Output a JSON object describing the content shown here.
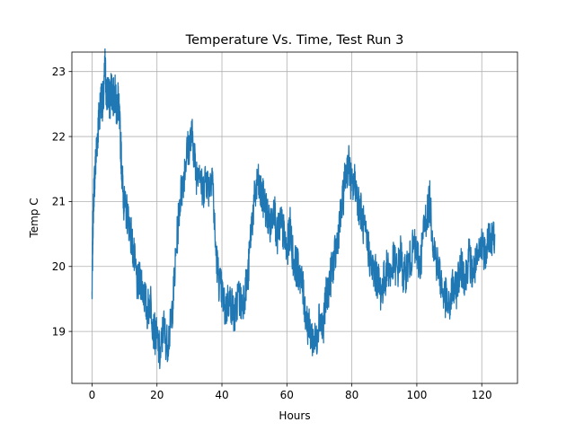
{
  "chart_data": {
    "type": "line",
    "title": "Temperature Vs. Time, Test Run 3",
    "xlabel": "Hours",
    "ylabel": "Temp C",
    "xlim": [
      -6.2,
      131
    ],
    "ylim": [
      18.2,
      23.3
    ],
    "xticks": [
      0,
      20,
      40,
      60,
      80,
      100,
      120
    ],
    "yticks": [
      19,
      20,
      21,
      22,
      23
    ],
    "grid": true,
    "series_color": "#1f77b4",
    "series": [
      {
        "x": [
          0.0,
          0.3,
          0.6,
          1.0,
          1.5,
          2.0,
          2.5,
          3.0,
          3.5,
          4.0,
          4.5,
          5.0,
          5.5,
          6.0,
          6.5,
          7.0,
          7.5,
          8.0,
          8.5,
          9.0,
          9.5,
          10.0,
          11.0,
          12.0,
          13.0,
          14.0,
          15.0,
          16.0,
          17.0,
          18.0,
          19.0,
          20.0,
          21.0,
          22.0,
          23.0,
          24.0,
          25.0,
          26.0,
          27.0,
          28.0,
          29.0,
          30.0,
          31.0,
          32.0,
          33.0,
          34.0,
          35.0,
          36.0,
          37.0,
          38.0,
          39.0,
          40.0,
          41.0,
          42.0,
          43.0,
          44.0,
          45.0,
          46.0,
          47.0,
          48.0,
          49.0,
          50.0,
          51.0,
          52.0,
          53.0,
          54.0,
          55.0,
          56.0,
          57.0,
          58.0,
          59.0,
          60.0,
          61.0,
          62.0,
          63.0,
          64.0,
          65.0,
          66.0,
          67.0,
          68.0,
          69.0,
          70.0,
          71.0,
          72.0,
          73.0,
          74.0,
          75.0,
          76.0,
          77.0,
          78.0,
          79.0,
          80.0,
          81.0,
          82.0,
          83.0,
          84.0,
          85.0,
          86.0,
          87.0,
          88.0,
          89.0,
          90.0,
          91.0,
          92.0,
          93.0,
          94.0,
          95.0,
          96.0,
          97.0,
          98.0,
          99.0,
          100.0,
          101.0,
          102.0,
          103.0,
          104.0,
          105.0,
          106.0,
          107.0,
          108.0,
          109.0,
          110.0,
          111.0,
          112.0,
          113.0,
          114.0,
          115.0,
          116.0,
          117.0,
          118.0,
          119.0,
          120.0,
          121.0,
          122.0,
          123.0,
          124.0
        ],
        "values": [
          19.55,
          20.7,
          21.2,
          21.5,
          21.9,
          22.2,
          22.5,
          22.6,
          22.5,
          23.1,
          22.6,
          22.7,
          22.5,
          22.8,
          22.55,
          22.7,
          22.4,
          22.6,
          22.2,
          21.7,
          21.2,
          20.9,
          20.8,
          20.5,
          20.1,
          19.7,
          19.8,
          19.6,
          19.3,
          19.5,
          19.0,
          18.9,
          18.6,
          19.1,
          18.8,
          19.0,
          19.5,
          20.3,
          21.0,
          21.3,
          21.7,
          21.9,
          22.0,
          21.4,
          21.6,
          21.1,
          21.4,
          21.2,
          21.5,
          20.3,
          19.8,
          19.6,
          19.3,
          19.5,
          19.4,
          19.2,
          19.6,
          19.4,
          19.6,
          19.8,
          20.6,
          21.0,
          21.3,
          21.1,
          21.0,
          20.8,
          20.6,
          21.0,
          20.4,
          20.7,
          20.5,
          20.2,
          20.6,
          20.1,
          20.0,
          19.9,
          19.6,
          19.2,
          19.0,
          18.9,
          18.8,
          19.3,
          19.0,
          19.5,
          19.7,
          20.0,
          20.2,
          20.6,
          20.9,
          21.4,
          21.6,
          21.2,
          21.3,
          21.0,
          20.8,
          20.5,
          20.3,
          20.0,
          19.9,
          19.8,
          19.6,
          19.8,
          20.0,
          19.9,
          20.1,
          19.9,
          20.2,
          19.8,
          20.0,
          20.1,
          20.3,
          20.2,
          20.0,
          20.5,
          20.8,
          21.0,
          20.4,
          20.1,
          19.9,
          19.6,
          19.5,
          19.3,
          19.7,
          19.6,
          19.9,
          20.0,
          19.8,
          20.2,
          19.9,
          20.0,
          20.1,
          20.4,
          20.2,
          20.5,
          20.4,
          20.5
        ]
      }
    ]
  }
}
